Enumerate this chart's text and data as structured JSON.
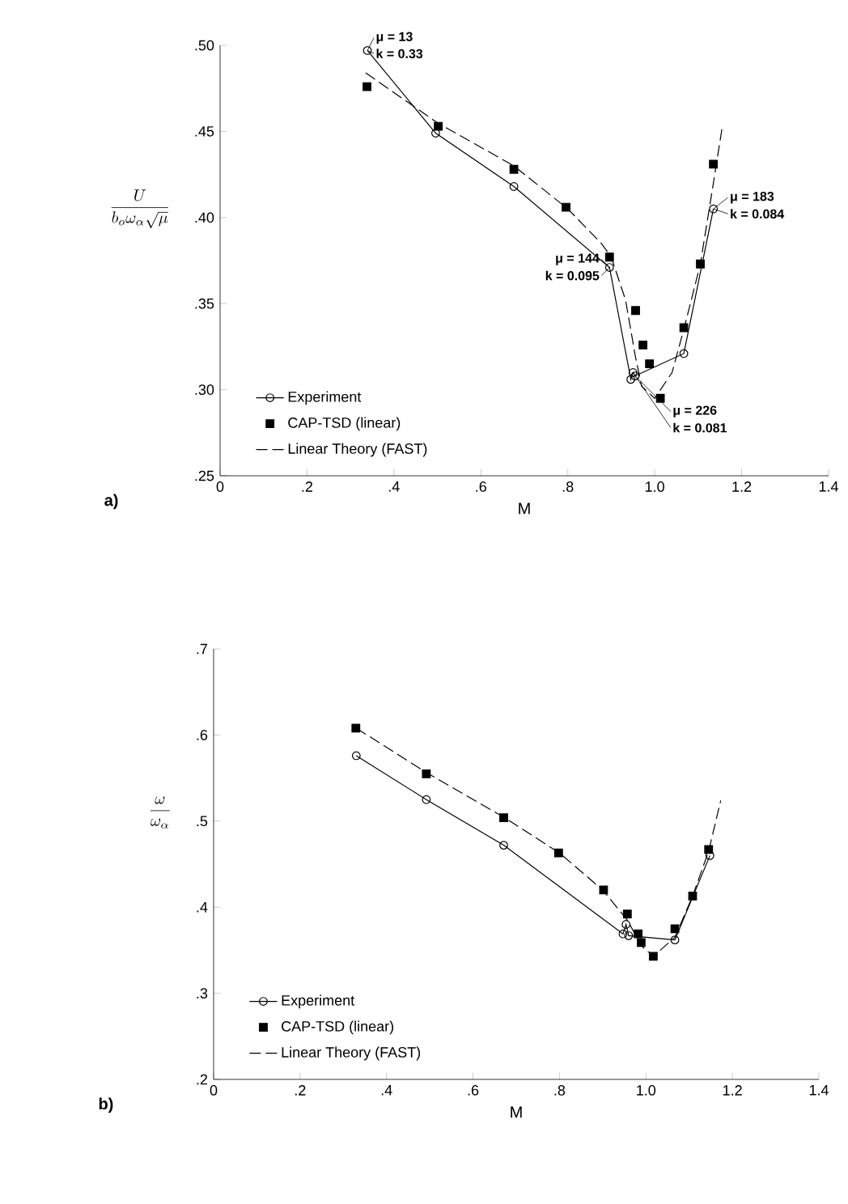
{
  "chart_data": [
    {
      "type": "line",
      "title": "a)",
      "xlabel": "M",
      "ylabel": "\\frac{U}{b_{o}\\omega_{\\alpha}\\sqrt{\\mu}}",
      "xlim": [
        0,
        1.4
      ],
      "ylim": [
        0.25,
        0.5
      ],
      "xticks": [
        0,
        {
          "value": 0.2,
          "label": ".2"
        },
        {
          "value": 0.4,
          "label": ".4"
        },
        {
          "value": 0.6,
          "label": ".6"
        },
        {
          "value": 0.8,
          "label": ".8"
        },
        {
          "value": 1.0,
          "label": "1.0"
        },
        {
          "value": 1.2,
          "label": "1.2"
        },
        {
          "value": 1.4,
          "label": "1.4"
        }
      ],
      "yticks": [
        {
          "value": 0.25,
          "label": ".25"
        },
        {
          "value": 0.3,
          "label": ".30"
        },
        {
          "value": 0.35,
          "label": ".35"
        },
        {
          "value": 0.4,
          "label": ".40"
        },
        {
          "value": 0.45,
          "label": ".45"
        },
        {
          "value": 0.5,
          "label": ".50"
        }
      ],
      "legend": "bottom left",
      "series": [
        {
          "name": "Experiment",
          "type": "line",
          "marker": "circle",
          "line_style": "solid",
          "color": "#000000",
          "x": [
            0.339,
            0.496,
            0.676,
            0.896,
            0.945,
            0.95,
            0.955,
            1.067,
            1.135
          ],
          "values": [
            0.497,
            0.449,
            0.418,
            0.371,
            0.306,
            0.31,
            0.308,
            0.321,
            0.405
          ]
        },
        {
          "name": "CAP-TSD (linear)",
          "type": "scatter",
          "marker": "square",
          "color": "#000000",
          "x": [
            0.338,
            0.502,
            0.676,
            0.796,
            0.896,
            0.956,
            0.973,
            0.988,
            1.013,
            1.067,
            1.105,
            1.135
          ],
          "values": [
            0.476,
            0.453,
            0.428,
            0.406,
            0.377,
            0.346,
            0.326,
            0.315,
            0.295,
            0.336,
            0.373,
            0.431
          ]
        },
        {
          "name": "Linear Theory (FAST)",
          "type": "line",
          "marker": "none",
          "line_style": "dashed",
          "color": "#000000",
          "x": [
            0.335,
            0.5,
            0.676,
            0.8,
            0.877,
            0.9,
            0.933,
            0.955,
            0.97,
            1.0,
            1.04,
            1.07,
            1.105,
            1.135,
            1.155
          ],
          "values": [
            0.484,
            0.455,
            0.43,
            0.405,
            0.385,
            0.377,
            0.352,
            0.32,
            0.302,
            0.295,
            0.31,
            0.338,
            0.373,
            0.42,
            0.452
          ]
        }
      ],
      "annotations": [
        {
          "text": "μ = 13",
          "x": 0.339,
          "y": 0.497
        },
        {
          "text": "k = 0.33",
          "x": 0.339,
          "y": 0.497
        },
        {
          "text": "μ = 144",
          "x": 0.896,
          "y": 0.371
        },
        {
          "text": "k = 0.095",
          "x": 0.896,
          "y": 0.371
        },
        {
          "text": "μ = 226",
          "x": 0.955,
          "y": 0.308
        },
        {
          "text": "k = 0.081",
          "x": 0.955,
          "y": 0.308
        },
        {
          "text": "μ = 183",
          "x": 1.135,
          "y": 0.405
        },
        {
          "text": "k = 0.084",
          "x": 1.135,
          "y": 0.405
        }
      ]
    },
    {
      "type": "line",
      "title": "b)",
      "xlabel": "M",
      "ylabel": "\\frac{\\omega}{\\omega_{\\alpha}}",
      "xlim": [
        0,
        1.4
      ],
      "ylim": [
        0.2,
        0.7
      ],
      "xticks": [
        0,
        {
          "value": 0.2,
          "label": ".2"
        },
        {
          "value": 0.4,
          "label": ".4"
        },
        {
          "value": 0.6,
          "label": ".6"
        },
        {
          "value": 0.8,
          "label": ".8"
        },
        {
          "value": 1.0,
          "label": "1.0"
        },
        {
          "value": 1.2,
          "label": "1.2"
        },
        {
          "value": 1.4,
          "label": "1.4"
        }
      ],
      "yticks": [
        {
          "value": 0.2,
          "label": ".2"
        },
        {
          "value": 0.3,
          "label": ".3"
        },
        {
          "value": 0.4,
          "label": ".4"
        },
        {
          "value": 0.5,
          "label": ".5"
        },
        {
          "value": 0.6,
          "label": ".6"
        },
        {
          "value": 0.7,
          "label": ".7"
        }
      ],
      "legend": "bottom left",
      "series": [
        {
          "name": "Experiment",
          "type": "line",
          "marker": "circle",
          "line_style": "solid",
          "color": "#000000",
          "x": [
            0.33,
            0.492,
            0.671,
            0.947,
            0.954,
            0.96,
            1.067,
            1.148
          ],
          "values": [
            0.576,
            0.525,
            0.472,
            0.369,
            0.38,
            0.367,
            0.362,
            0.46
          ]
        },
        {
          "name": "CAP-TSD (linear)",
          "type": "scatter",
          "marker": "square",
          "color": "#000000",
          "x": [
            0.329,
            0.492,
            0.671,
            0.798,
            0.902,
            0.957,
            0.982,
            0.989,
            1.017,
            1.067,
            1.108,
            1.145
          ],
          "values": [
            0.608,
            0.555,
            0.504,
            0.463,
            0.42,
            0.392,
            0.369,
            0.359,
            0.343,
            0.375,
            0.413,
            0.467
          ]
        },
        {
          "name": "Linear Theory (FAST)",
          "type": "line",
          "marker": "none",
          "line_style": "dashed",
          "color": "#000000",
          "x": [
            0.33,
            0.49,
            0.67,
            0.8,
            0.9,
            0.957,
            0.99,
            1.017,
            1.067,
            1.108,
            1.145,
            1.173
          ],
          "values": [
            0.608,
            0.557,
            0.505,
            0.463,
            0.42,
            0.385,
            0.355,
            0.343,
            0.365,
            0.413,
            0.465,
            0.524
          ]
        }
      ]
    }
  ]
}
